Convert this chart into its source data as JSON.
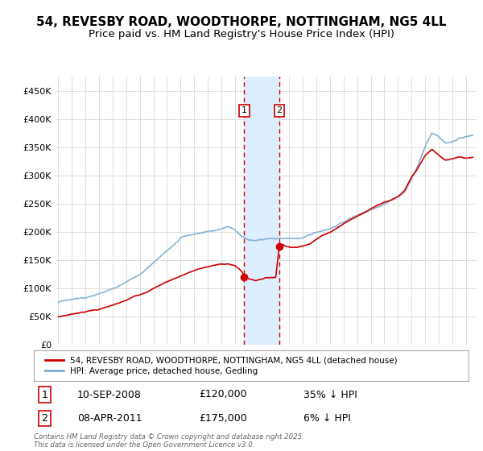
{
  "title": "54, REVESBY ROAD, WOODTHORPE, NOTTINGHAM, NG5 4LL",
  "subtitle": "Price paid vs. HM Land Registry's House Price Index (HPI)",
  "ylim": [
    0,
    475000
  ],
  "yticks": [
    0,
    50000,
    100000,
    150000,
    200000,
    250000,
    300000,
    350000,
    400000,
    450000
  ],
  "ytick_labels": [
    "£0",
    "£50K",
    "£100K",
    "£150K",
    "£200K",
    "£250K",
    "£300K",
    "£350K",
    "£400K",
    "£450K"
  ],
  "xlim_left": 1994.8,
  "xlim_right": 2025.8,
  "sale1_date": 2008.69,
  "sale1_price": 120000,
  "sale1_label": "10-SEP-2008",
  "sale1_text": "£120,000",
  "sale1_pct": "35% ↓ HPI",
  "sale2_date": 2011.27,
  "sale2_price": 175000,
  "sale2_label": "08-APR-2011",
  "sale2_text": "£175,000",
  "sale2_pct": "6% ↓ HPI",
  "line1_color": "#cc0000",
  "line2_color": "#7aadcf",
  "shade_color": "#ddeeff",
  "vline_color": "#cc0000",
  "box_color": "#cc0000",
  "legend1_label": "54, REVESBY ROAD, WOODTHORPE, NOTTINGHAM, NG5 4LL (detached house)",
  "legend2_label": "HPI: Average price, detached house, Gedling",
  "footer": "Contains HM Land Registry data © Crown copyright and database right 2025.\nThis data is licensed under the Open Government Licence v3.0.",
  "background_color": "#ffffff",
  "grid_color": "#dddddd",
  "title_fontsize": 11,
  "subtitle_fontsize": 9.5
}
